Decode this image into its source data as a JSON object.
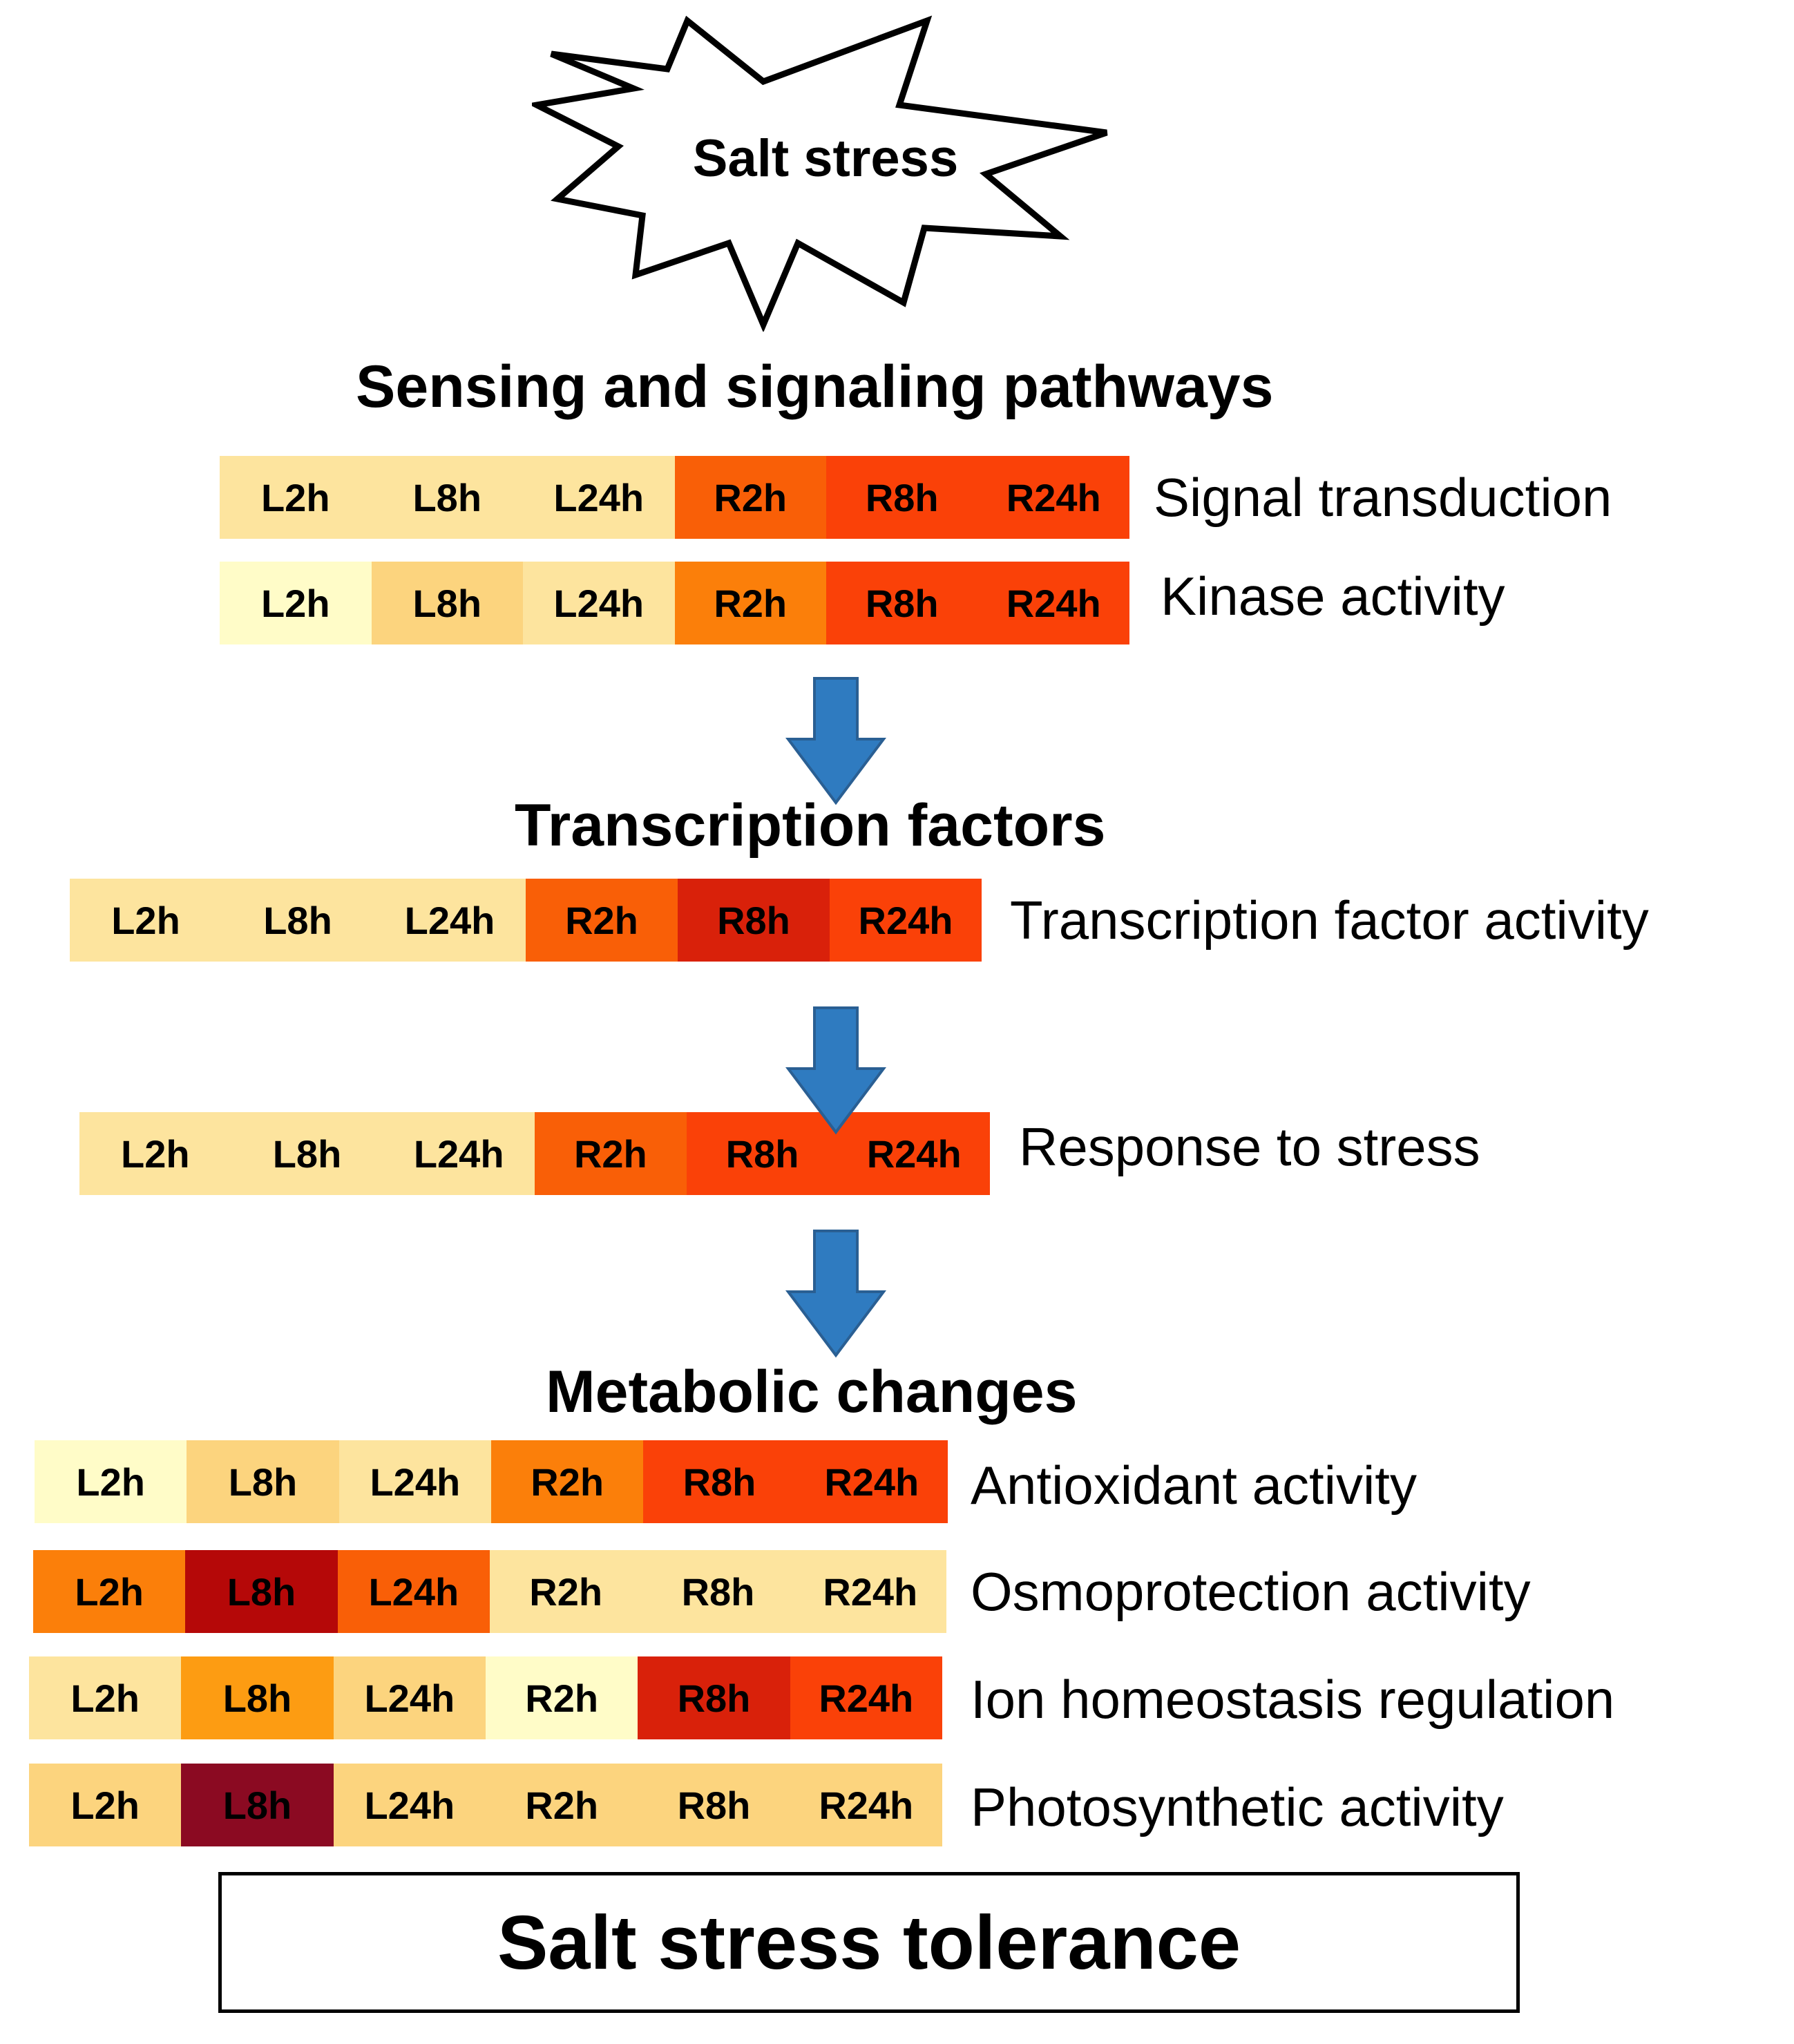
{
  "trigger": {
    "label": "Salt stress",
    "icon": "burst-star-icon"
  },
  "sections": {
    "sensing": "Sensing and signaling pathways",
    "transcription": "Transcription factors",
    "metabolic": "Metabolic changes"
  },
  "timepoints": [
    "L2h",
    "L8h",
    "L24h",
    "R2h",
    "R8h",
    "R24h"
  ],
  "color_scale": {
    "1": "#fffcc8",
    "2": "#fde49e",
    "3": "#fcd47e",
    "4": "#fd9c12",
    "5": "#fb7f0a",
    "6": "#f95f07",
    "7": "#fa4108",
    "8": "#d9210a",
    "9": "#b50808",
    "10": "#8b0a22"
  },
  "rows": [
    {
      "label": "Signal transduction",
      "levels": [
        2,
        2,
        2,
        6,
        7,
        7
      ]
    },
    {
      "label": "Kinase activity",
      "levels": [
        1,
        3,
        2,
        5,
        7,
        7
      ]
    },
    {
      "label": "Transcription factor activity",
      "levels": [
        2,
        2,
        2,
        6,
        8,
        7
      ]
    },
    {
      "label": "Response to stress",
      "levels": [
        2,
        2,
        2,
        6,
        7,
        7
      ]
    },
    {
      "label": "Antioxidant activity",
      "levels": [
        1,
        3,
        2,
        5,
        7,
        7
      ]
    },
    {
      "label": "Osmoprotection activity",
      "levels": [
        5,
        9,
        6,
        2,
        2,
        2
      ]
    },
    {
      "label": "Ion homeostasis regulation",
      "levels": [
        2,
        4,
        3,
        1,
        8,
        7
      ]
    },
    {
      "label": "Photosynthetic activity",
      "levels": [
        3,
        10,
        3,
        3,
        3,
        3
      ]
    }
  ],
  "arrow_icon": "down-arrow-icon",
  "outcome": "Salt stress tolerance"
}
